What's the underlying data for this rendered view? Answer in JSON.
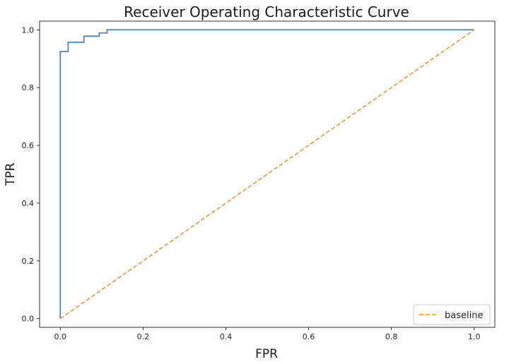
{
  "chart_data": {
    "type": "line",
    "title": "Receiver Operating Characteristic Curve",
    "xlabel": "FPR",
    "ylabel": "TPR",
    "xlim": [
      -0.05,
      1.05
    ],
    "ylim": [
      -0.03,
      1.03
    ],
    "xticks": [
      0.0,
      0.2,
      0.4,
      0.6,
      0.8,
      1.0
    ],
    "xtick_labels": [
      "0.0",
      "0.2",
      "0.4",
      "0.6",
      "0.8",
      "1.0"
    ],
    "yticks": [
      0.0,
      0.2,
      0.4,
      0.6,
      0.8,
      1.0
    ],
    "ytick_labels": [
      "0.0",
      "0.2",
      "0.4",
      "0.6",
      "0.8",
      "1.0"
    ],
    "grid": false,
    "legend": "lower-right",
    "series": [
      {
        "color": "#4c84b8",
        "style": "solid",
        "x": [
          0.0,
          0.0,
          0.019,
          0.019,
          0.057,
          0.057,
          0.094,
          0.094,
          0.113,
          0.113,
          1.0
        ],
        "y": [
          0.0,
          0.925,
          0.925,
          0.957,
          0.957,
          0.978,
          0.978,
          0.989,
          0.989,
          1.0,
          1.0
        ]
      },
      {
        "name": "baseline",
        "color": "#f0a050",
        "style": "dashed",
        "x": [
          0.0,
          1.0
        ],
        "y": [
          0.0,
          1.0
        ]
      }
    ]
  }
}
